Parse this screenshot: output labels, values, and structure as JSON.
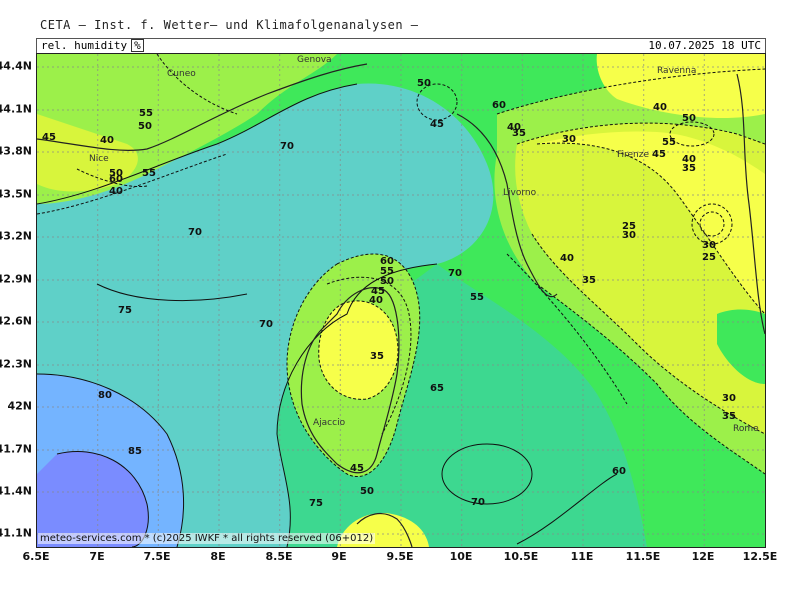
{
  "header": {
    "title": "CETA — Inst. f. Wetter— und Klimafolgenanalysen —",
    "variable": "rel. humidity",
    "unit": "%",
    "valid_time": "10.07.2025 18 UTC"
  },
  "credit": "meteo-services.com * (c)2025 IWKF * all rights reserved (06+012)",
  "axes": {
    "lat_labels": [
      "44.4N",
      "44.1N",
      "43.8N",
      "43.5N",
      "43.2N",
      "42.9N",
      "42.6N",
      "42.3N",
      "42N",
      "41.7N",
      "41.4N",
      "41.1N"
    ],
    "lon_labels": [
      "6.5E",
      "7E",
      "7.5E",
      "8E",
      "8.5E",
      "9E",
      "9.5E",
      "10E",
      "10.5E",
      "11E",
      "11.5E",
      "12E",
      "12.5E"
    ]
  },
  "cities": [
    "Cuneo",
    "Genova",
    "Ravenna",
    "Nice",
    "Firenze",
    "Livorno",
    "Ajaccio",
    "Rome"
  ],
  "contour_labels": [
    "45",
    "40",
    "55",
    "50",
    "70",
    "60",
    "45",
    "35",
    "30",
    "40",
    "50",
    "55",
    "45",
    "40",
    "35",
    "25",
    "30",
    "30",
    "25",
    "40",
    "35",
    "60",
    "55",
    "50",
    "45",
    "40",
    "35",
    "70",
    "55",
    "75",
    "70",
    "80",
    "85",
    "65",
    "45",
    "50",
    "75",
    "70",
    "60",
    "30",
    "35",
    "55",
    "50",
    "60",
    "70",
    "50",
    "40",
    "40"
  ],
  "colors": {
    "hum_25": "#f6ff4a",
    "hum_35": "#d8f53c",
    "hum_45": "#9cf04a",
    "hum_55": "#3fe85a",
    "hum_65": "#3dd890",
    "hum_75": "#5fd0c8",
    "hum_85": "#74b4ff",
    "hum_90": "#7a8cff"
  }
}
